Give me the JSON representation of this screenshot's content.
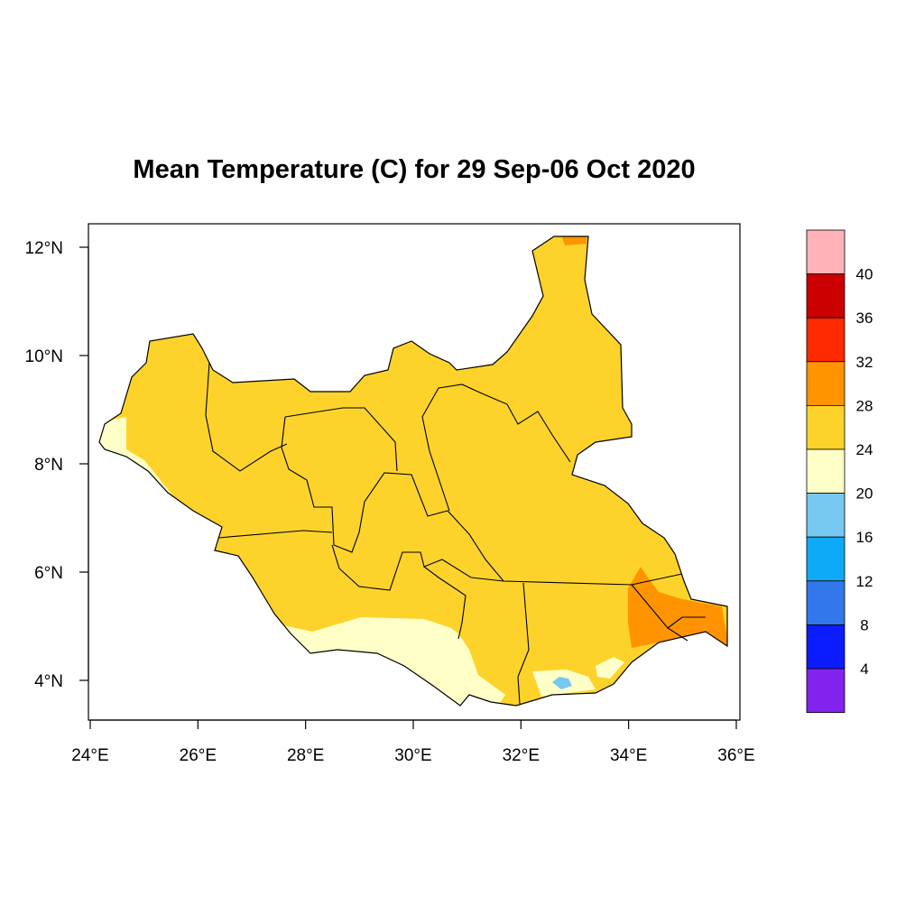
{
  "title": "Mean Temperature (C) for 29 Sep-06 Oct 2020",
  "axes": {
    "x_ticks": [
      "24°E",
      "26°E",
      "28°E",
      "30°E",
      "32°E",
      "34°E",
      "36°E"
    ],
    "y_ticks": [
      "12°N",
      "10°N",
      "8°N",
      "6°N",
      "4°N"
    ]
  },
  "colorbar": {
    "labels": [
      "40",
      "36",
      "32",
      "28",
      "24",
      "20",
      "16",
      "12",
      "8",
      "4"
    ],
    "colors": [
      "#ffb3b8",
      "#cc0000",
      "#ff2a00",
      "#ff9400",
      "#fdd32b",
      "#ffffc8",
      "#76c8f0",
      "#0eaaf8",
      "#3377ec",
      "#0b1cff",
      "#8322ec"
    ]
  },
  "map_colors": {
    "base": "#fdd32b",
    "cool": "#ffffc8",
    "warm": "#ff9400",
    "cold_spot": "#76c8f0",
    "border": "#000000"
  }
}
